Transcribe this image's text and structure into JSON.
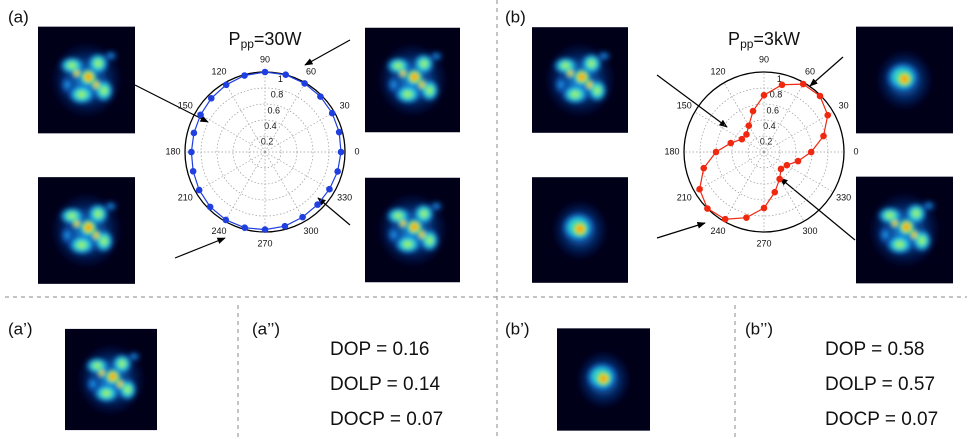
{
  "chart_data": [
    {
      "type": "polar",
      "title_main": "P",
      "title_sub": "pp",
      "title_value": "=30W",
      "theta": [
        0,
        15,
        30,
        45,
        60,
        75,
        90,
        105,
        120,
        135,
        150,
        165,
        180,
        195,
        210,
        225,
        240,
        255,
        270,
        285,
        300,
        315,
        330,
        345
      ],
      "series": [
        {
          "color": "#1f3fe0",
          "values": [
            0.95,
            0.96,
            0.97,
            0.98,
            0.99,
            1.0,
            1.0,
            0.99,
            0.97,
            0.95,
            0.93,
            0.92,
            0.92,
            0.93,
            0.95,
            0.97,
            0.98,
            0.98,
            0.97,
            0.96,
            0.94,
            0.93,
            0.93,
            0.94
          ]
        }
      ],
      "rlim": [
        0,
        1
      ],
      "rticks": [
        0.2,
        0.4,
        0.6,
        0.8,
        1
      ],
      "thetaticks": [
        0,
        30,
        60,
        90,
        120,
        150,
        180,
        210,
        240,
        270,
        300,
        330
      ],
      "grid": true
    },
    {
      "type": "polar",
      "title_main": "P",
      "title_sub": "pp",
      "title_value": "=3kW",
      "theta": [
        0,
        15,
        30,
        45,
        60,
        75,
        90,
        105,
        120,
        135,
        150,
        165,
        180,
        195,
        210,
        225,
        240,
        255,
        270,
        285,
        300,
        315,
        330,
        345
      ],
      "series": [
        {
          "color": "#f02810",
          "values": [
            0.59,
            0.77,
            0.92,
            0.99,
            0.98,
            0.87,
            0.71,
            0.53,
            0.38,
            0.31,
            0.32,
            0.43,
            0.6,
            0.78,
            0.93,
            1.0,
            0.97,
            0.85,
            0.7,
            0.52,
            0.39,
            0.3,
            0.33,
            0.44
          ]
        }
      ],
      "rlim": [
        0,
        1
      ],
      "rticks": [
        0.2,
        0.4,
        0.6,
        0.8,
        1
      ],
      "thetaticks": [
        0,
        30,
        60,
        90,
        120,
        150,
        180,
        210,
        240,
        270,
        300,
        330
      ],
      "grid": true
    }
  ],
  "panels": {
    "a": "(a)",
    "b": "(b)",
    "a1": "(a’)",
    "a2": "(a’’)",
    "b1": "(b’)",
    "b2": "(b’’)"
  },
  "metrics": [
    {
      "lines": [
        "DOP = 0.16",
        "DOLP = 0.14",
        "DOCP = 0.07"
      ]
    },
    {
      "lines": [
        "DOP = 0.58",
        "DOLP = 0.57",
        "DOCP = 0.07"
      ]
    }
  ]
}
